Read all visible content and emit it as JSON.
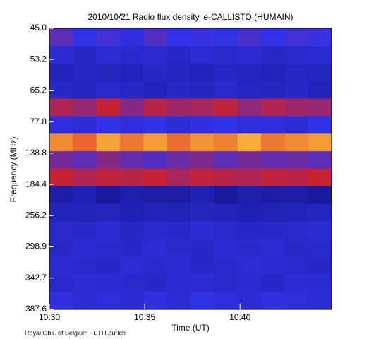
{
  "chart_data": {
    "type": "heatmap",
    "title": "2010/10/21  Radio flux density, e-CALLISTO (HUMAIN)",
    "x_label": "Time (UT)",
    "y_label": "Frequency (MHz)",
    "footer": "Royal Obs. of Belgium - ETH Zurich",
    "xlim": [
      "10:30",
      "10:44:48"
    ],
    "xticks": [
      "10:30",
      "10:35",
      "10:40"
    ],
    "yticks": [
      "45.0",
      "53.2",
      "65.2",
      "77.8",
      "138.8",
      "184.4",
      "256.2",
      "298.9",
      "342.7",
      "387.6"
    ],
    "clim": [
      0,
      100
    ],
    "colormap": [
      "#000000",
      "#14148c",
      "#3232ea",
      "#d82020",
      "#ffd040",
      "#ffffff"
    ],
    "values": [
      [
        45,
        40,
        42,
        38,
        44,
        40,
        41,
        39,
        43,
        40,
        42,
        41
      ],
      [
        35,
        33,
        36,
        34,
        35,
        33,
        36,
        34,
        35,
        33,
        34,
        35
      ],
      [
        30,
        32,
        31,
        30,
        33,
        31,
        30,
        32,
        31,
        30,
        32,
        31
      ],
      [
        33,
        31,
        34,
        32,
        30,
        33,
        31,
        34,
        32,
        31,
        33,
        30
      ],
      [
        55,
        52,
        58,
        50,
        56,
        53,
        54,
        57,
        51,
        55,
        53,
        52
      ],
      [
        38,
        36,
        40,
        37,
        39,
        36,
        38,
        40,
        37,
        38,
        36,
        39
      ],
      [
        72,
        68,
        75,
        70,
        74,
        69,
        73,
        71,
        76,
        70,
        72,
        74
      ],
      [
        48,
        45,
        50,
        46,
        44,
        47,
        49,
        45,
        48,
        46,
        47,
        45
      ],
      [
        58,
        55,
        57,
        56,
        58,
        54,
        57,
        56,
        55,
        57,
        56,
        58
      ],
      [
        25,
        28,
        24,
        27,
        26,
        25,
        28,
        24,
        27,
        25,
        26,
        24
      ],
      [
        30,
        29,
        31,
        28,
        30,
        29,
        31,
        30,
        28,
        29,
        30,
        31
      ],
      [
        34,
        33,
        35,
        32,
        34,
        33,
        35,
        34,
        32,
        33,
        34,
        35
      ],
      [
        33,
        35,
        34,
        33,
        36,
        34,
        33,
        35,
        34,
        36,
        33,
        34
      ],
      [
        35,
        34,
        33,
        36,
        34,
        35,
        33,
        34,
        36,
        35,
        34,
        33
      ],
      [
        34,
        36,
        35,
        34,
        33,
        35,
        36,
        34,
        35,
        33,
        36,
        35
      ],
      [
        38,
        36,
        37,
        35,
        38,
        36,
        39,
        37,
        36,
        38,
        37,
        36
      ]
    ]
  }
}
